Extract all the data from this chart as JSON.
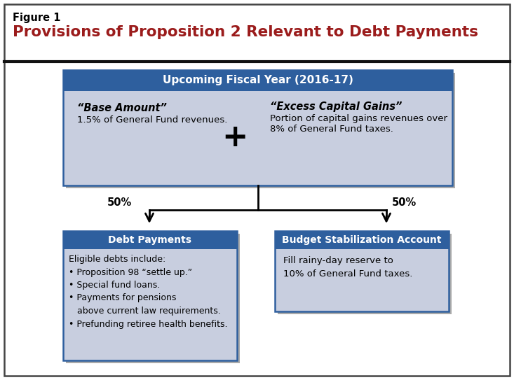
{
  "figure_label": "Figure 1",
  "title": "Provisions of Proposition 2 Relevant to Debt Payments",
  "title_color": "#9B1C1C",
  "figure_label_color": "#000000",
  "bg_color": "#FFFFFF",
  "outer_border_color": "#444444",
  "header_bar_color": "#2E5F9E",
  "header_bar_text": "Upcoming Fiscal Year (2016-17)",
  "header_bar_text_color": "#FFFFFF",
  "top_box_fill": "#C8CEDF",
  "top_box_border": "#2E5F9E",
  "base_amount_title": "“Base Amount”",
  "base_amount_body": "1.5% of General Fund revenues.",
  "plus_symbol": "+",
  "excess_title": "“Excess Capital Gains”",
  "excess_body": "Portion of capital gains revenues over\n8% of General Fund taxes.",
  "left_pct": "50%",
  "right_pct": "50%",
  "left_header_text": "Debt Payments",
  "right_header_text": "Budget Stabilization Account",
  "left_box_body": "Eligible debts include:\n• Proposition 98 “settle up.”\n• Special fund loans.\n• Payments for pensions\n   above current law requirements.\n• Prefunding retiree health benefits.",
  "right_box_body": "Fill rainy-day reserve to\n10% of General Fund taxes.",
  "arrow_color": "#000000",
  "box_shadow_color": "#AAAAAA",
  "line_color": "#222222"
}
